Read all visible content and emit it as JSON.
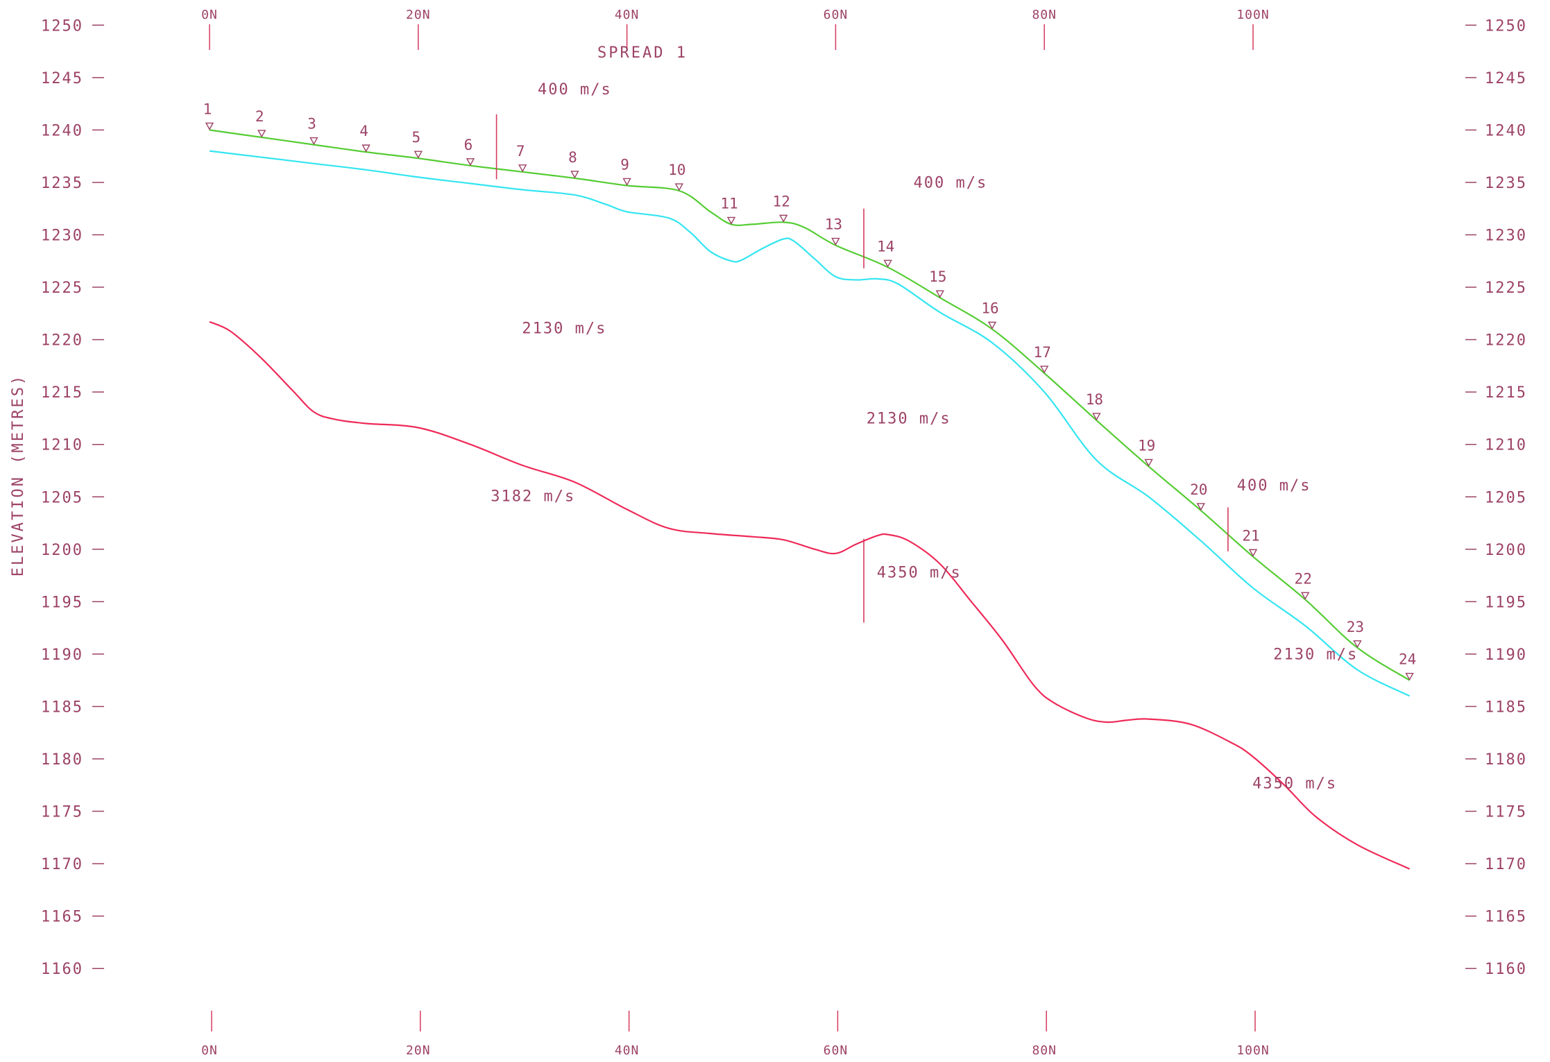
{
  "colors": {
    "text": "#9c4266",
    "ground": "#55cc33",
    "weathered_base": "#33e5f0",
    "bedrock": "#ee2a58",
    "marker": "#d63a5e"
  },
  "chart_data": {
    "type": "line",
    "title": "SPREAD  1",
    "ylabel": "ELEVATION  (METRES)",
    "xlabel": "",
    "xlim": [
      -0.5,
      117
    ],
    "ylim": [
      1156,
      1251
    ],
    "x_ticks": [
      0,
      20,
      40,
      60,
      80,
      100
    ],
    "x_tick_labels": [
      "0N",
      "20N",
      "40N",
      "60N",
      "80N",
      "100N"
    ],
    "y_ticks": [
      1250,
      1245,
      1240,
      1235,
      1230,
      1225,
      1220,
      1215,
      1210,
      1205,
      1200,
      1195,
      1190,
      1185,
      1180,
      1175,
      1170,
      1165,
      1160
    ],
    "y_tick_labels": [
      "1250",
      "1245",
      "1240",
      "1235",
      "1230",
      "1225",
      "1220",
      "1215",
      "1210",
      "1205",
      "1200",
      "1195",
      "1190",
      "1185",
      "1180",
      "1175",
      "1170",
      "1165",
      "1160"
    ],
    "grid": false,
    "series": [
      {
        "role": "ground",
        "color": "#55cc33",
        "x": [
          0,
          5,
          10,
          15,
          20,
          25,
          30,
          35,
          40,
          45,
          48,
          50,
          52,
          55,
          57,
          60,
          65,
          70,
          75,
          80,
          85,
          90,
          95,
          100,
          105,
          110,
          115
        ],
        "y": [
          1240,
          1239.3,
          1238.6,
          1237.9,
          1237.3,
          1236.6,
          1236,
          1235.4,
          1234.7,
          1234.2,
          1232.2,
          1231,
          1231,
          1231.2,
          1230.7,
          1229,
          1226.9,
          1224,
          1221,
          1216.8,
          1212.3,
          1207.9,
          1203.7,
          1199.3,
          1195.2,
          1190.6,
          1187.5
        ]
      },
      {
        "role": "weathered-layer base",
        "color": "#33e5f0",
        "x": [
          0,
          5,
          10,
          15,
          20,
          25,
          30,
          35,
          38,
          40,
          44,
          46,
          48,
          50,
          51,
          53,
          55,
          56,
          58,
          60,
          62,
          64,
          66,
          70,
          75,
          80,
          85,
          90,
          95,
          100,
          105,
          110,
          115
        ],
        "y": [
          1238,
          1237.4,
          1236.8,
          1236.2,
          1235.5,
          1234.9,
          1234.3,
          1233.8,
          1232.9,
          1232.2,
          1231.6,
          1230.3,
          1228.4,
          1227.5,
          1227.6,
          1228.7,
          1229.6,
          1229.4,
          1227.7,
          1226,
          1225.7,
          1225.8,
          1225.3,
          1222.6,
          1219.7,
          1215,
          1208.5,
          1205,
          1200.8,
          1196.3,
          1192.7,
          1188.5,
          1186
        ]
      },
      {
        "role": "refractor (bedrock) surface",
        "color": "#ee2a58",
        "x": [
          0,
          2,
          5,
          8,
          10,
          12,
          15,
          20,
          25,
          30,
          35,
          40,
          44,
          48,
          52,
          55,
          58,
          60,
          62,
          64,
          65,
          67,
          70,
          73,
          76,
          79,
          81,
          84,
          86,
          88,
          90,
          94,
          98,
          100,
          103,
          106,
          110,
          115
        ],
        "y": [
          1221.7,
          1220.8,
          1218.2,
          1215.1,
          1213.1,
          1212.4,
          1212,
          1211.6,
          1210,
          1208,
          1206.4,
          1203.8,
          1202,
          1201.5,
          1201.2,
          1200.9,
          1200,
          1199.6,
          1200.5,
          1201.3,
          1201.4,
          1200.8,
          1198.6,
          1195,
          1191.3,
          1187,
          1185.3,
          1183.9,
          1183.5,
          1183.7,
          1183.8,
          1183.3,
          1181.5,
          1180.2,
          1177.5,
          1174.5,
          1171.8,
          1169.5
        ]
      }
    ],
    "geophones": {
      "labels": [
        "1",
        "2",
        "3",
        "4",
        "5",
        "6",
        "7",
        "8",
        "9",
        "10",
        "11",
        "12",
        "13",
        "14",
        "15",
        "16",
        "17",
        "18",
        "19",
        "20",
        "21",
        "22",
        "23",
        "24"
      ],
      "x": [
        0,
        5,
        10,
        15,
        20,
        25,
        30,
        35,
        40,
        45,
        50,
        55,
        60,
        65,
        70,
        75,
        80,
        85,
        90,
        95,
        100,
        105,
        110,
        115
      ],
      "y": [
        1240,
        1239.3,
        1238.6,
        1237.9,
        1237.3,
        1236.6,
        1236,
        1235.4,
        1234.7,
        1234.2,
        1231,
        1231.2,
        1229,
        1226.9,
        1224,
        1221,
        1216.8,
        1212.3,
        1207.9,
        1203.7,
        1199.3,
        1195.2,
        1190.6,
        1187.5
      ]
    },
    "velocity_breaks": [
      {
        "x": 27.5,
        "y_top": 1241.5,
        "y_bottom": 1235.3
      },
      {
        "x": 62.7,
        "y_top": 1232.5,
        "y_bottom": 1226.8
      },
      {
        "x": 97.6,
        "y_top": 1204,
        "y_bottom": 1199.8
      },
      {
        "x": 62.7,
        "y_top": 1201,
        "y_bottom": 1193
      }
    ],
    "annotations": [
      {
        "text": "400  m/s",
        "x": 35,
        "y": 1243.4
      },
      {
        "text": "400  m/s",
        "x": 71,
        "y": 1234.5
      },
      {
        "text": "400  m/s",
        "x": 102,
        "y": 1205.6
      },
      {
        "text": "2130  m/s",
        "x": 34,
        "y": 1220.6
      },
      {
        "text": "2130  m/s",
        "x": 67,
        "y": 1212
      },
      {
        "text": "2130  m/s",
        "x": 106,
        "y": 1189.5
      },
      {
        "text": "3182  m/s",
        "x": 31,
        "y": 1204.6
      },
      {
        "text": "4350  m/s",
        "x": 68,
        "y": 1197.3
      },
      {
        "text": "4350  m/s",
        "x": 104,
        "y": 1177.2
      }
    ]
  }
}
